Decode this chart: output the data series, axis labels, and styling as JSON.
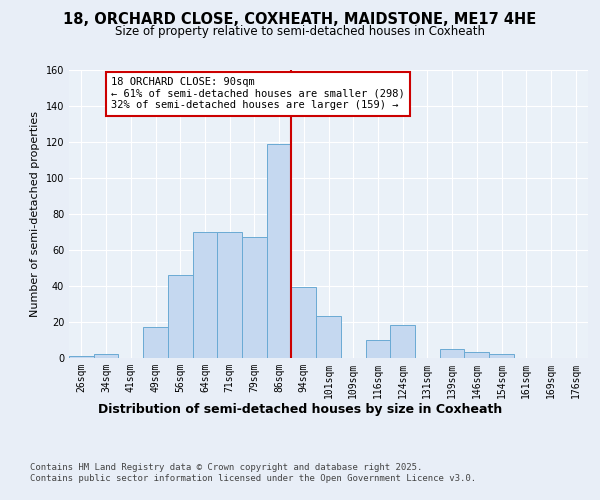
{
  "title": "18, ORCHARD CLOSE, COXHEATH, MAIDSTONE, ME17 4HE",
  "subtitle": "Size of property relative to semi-detached houses in Coxheath",
  "xlabel": "Distribution of semi-detached houses by size in Coxheath",
  "ylabel": "Number of semi-detached properties",
  "bin_labels": [
    "26sqm",
    "34sqm",
    "41sqm",
    "49sqm",
    "56sqm",
    "64sqm",
    "71sqm",
    "79sqm",
    "86sqm",
    "94sqm",
    "101sqm",
    "109sqm",
    "116sqm",
    "124sqm",
    "131sqm",
    "139sqm",
    "146sqm",
    "154sqm",
    "161sqm",
    "169sqm",
    "176sqm"
  ],
  "counts": [
    1,
    2,
    0,
    17,
    46,
    70,
    70,
    67,
    119,
    39,
    23,
    0,
    10,
    18,
    0,
    5,
    3,
    2,
    0,
    0,
    0
  ],
  "bar_color": "#c5d8f0",
  "bar_edge_color": "#6aaad4",
  "vline_color": "#cc0000",
  "annotation_text": "18 ORCHARD CLOSE: 90sqm\n← 61% of semi-detached houses are smaller (298)\n32% of semi-detached houses are larger (159) →",
  "annotation_box_color": "#ffffff",
  "annotation_box_edge_color": "#cc0000",
  "ylim": [
    0,
    160
  ],
  "yticks": [
    0,
    20,
    40,
    60,
    80,
    100,
    120,
    140,
    160
  ],
  "bg_color": "#e8eef7",
  "plot_bg_color": "#eaf1f8",
  "grid_color": "#ffffff",
  "footer_line1": "Contains HM Land Registry data © Crown copyright and database right 2025.",
  "footer_line2": "Contains public sector information licensed under the Open Government Licence v3.0.",
  "title_fontsize": 10.5,
  "subtitle_fontsize": 8.5,
  "xlabel_fontsize": 9,
  "ylabel_fontsize": 8,
  "tick_fontsize": 7,
  "footer_fontsize": 6.5,
  "ann_fontsize": 7.5,
  "vline_pos": 8.5
}
